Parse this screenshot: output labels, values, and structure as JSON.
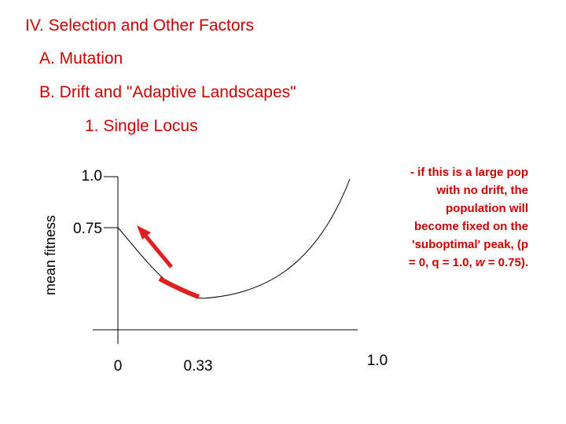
{
  "outline": [
    "IV. Selection and Other Factors",
    "A. Mutation",
    "B. Drift and \"Adaptive Landscapes\"",
    "1. Single Locus"
  ],
  "graph": {
    "y_label": "mean fitness",
    "y_ticks": [
      "1.0",
      "0.75"
    ],
    "x_ticks": [
      "0",
      "0.33",
      "1.0"
    ]
  },
  "note": [
    "- if this is a large pop",
    "with no drift, the",
    "population will",
    "become fixed on the",
    "'suboptimal' peak, (p"
  ],
  "note_last": [
    "= 0, q = 1.0, ",
    "w",
    " = 0.75)."
  ]
}
